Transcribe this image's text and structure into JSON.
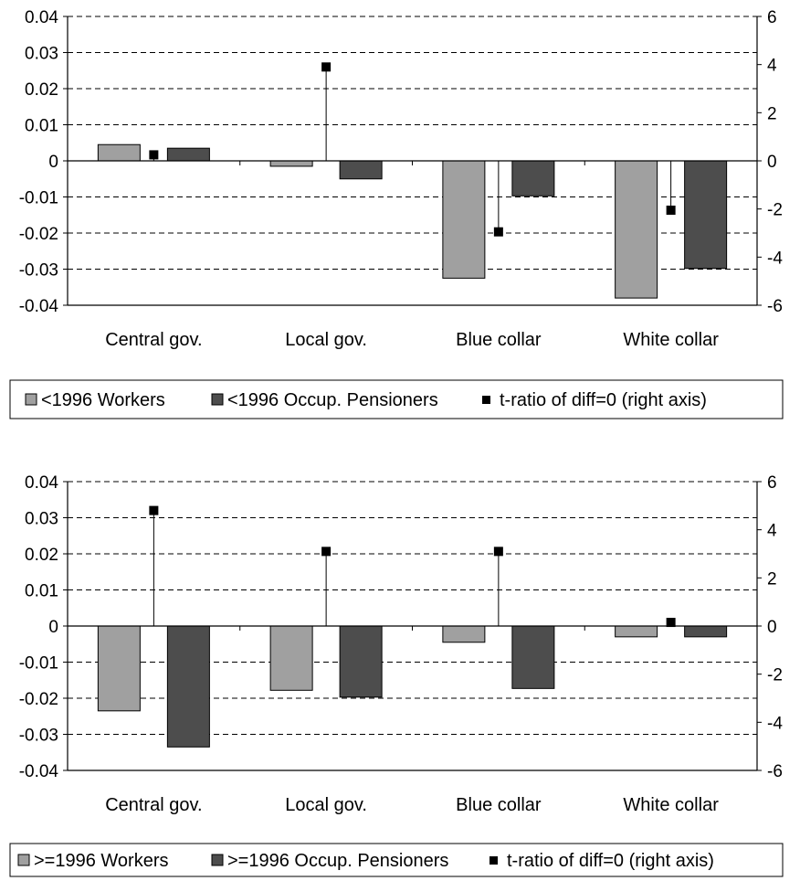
{
  "chart_data": [
    {
      "type": "bar",
      "categories": [
        "Central gov.",
        "Local gov.",
        "Blue collar",
        "White collar"
      ],
      "ylim": [
        -0.04,
        0.04
      ],
      "y_ticks": [
        "0.04",
        "0.03",
        "0.02",
        "0.01",
        "0",
        "-0.01",
        "-0.02",
        "-0.03",
        "-0.04"
      ],
      "y2lim": [
        -6,
        6
      ],
      "y2_ticks": [
        "6",
        "4",
        "2",
        "0",
        "-2",
        "-4",
        "-6"
      ],
      "grid": "horizontal dashed",
      "legend_position": "bottom",
      "series": [
        {
          "name": "<1996 Workers",
          "kind": "bar",
          "axis": "left",
          "color": "#a0a0a0",
          "values": [
            0.0045,
            -0.0015,
            -0.0325,
            -0.038
          ]
        },
        {
          "name": "<1996 Occup. Pensioners",
          "kind": "bar",
          "axis": "left",
          "color": "#4d4d4d",
          "values": [
            0.0035,
            -0.005,
            -0.0097,
            -0.0298
          ]
        },
        {
          "name": "t-ratio of diff=0 (right axis)",
          "kind": "marker",
          "axis": "right",
          "color": "#000000",
          "values": [
            0.25,
            3.9,
            -2.95,
            -2.05
          ]
        }
      ]
    },
    {
      "type": "bar",
      "categories": [
        "Central gov.",
        "Local gov.",
        "Blue collar",
        "White collar"
      ],
      "ylim": [
        -0.04,
        0.04
      ],
      "y_ticks": [
        "0.04",
        "0.03",
        "0.02",
        "0.01",
        "0",
        "-0.01",
        "-0.02",
        "-0.03",
        "-0.04"
      ],
      "y2lim": [
        -6,
        6
      ],
      "y2_ticks": [
        "6",
        "4",
        "2",
        "0",
        "-2",
        "-4",
        "-6"
      ],
      "grid": "horizontal dashed",
      "legend_position": "bottom",
      "series": [
        {
          "name": ">=1996 Workers",
          "kind": "bar",
          "axis": "left",
          "color": "#a0a0a0",
          "values": [
            -0.0235,
            -0.0178,
            -0.0045,
            -0.003
          ]
        },
        {
          "name": ">=1996 Occup. Pensioners",
          "kind": "bar",
          "axis": "left",
          "color": "#4d4d4d",
          "values": [
            -0.0335,
            -0.0197,
            -0.0173,
            -0.003
          ]
        },
        {
          "name": "t-ratio of diff=0 (right axis)",
          "kind": "marker",
          "axis": "right",
          "color": "#000000",
          "values": [
            4.8,
            3.1,
            3.1,
            0.15
          ]
        }
      ]
    }
  ]
}
